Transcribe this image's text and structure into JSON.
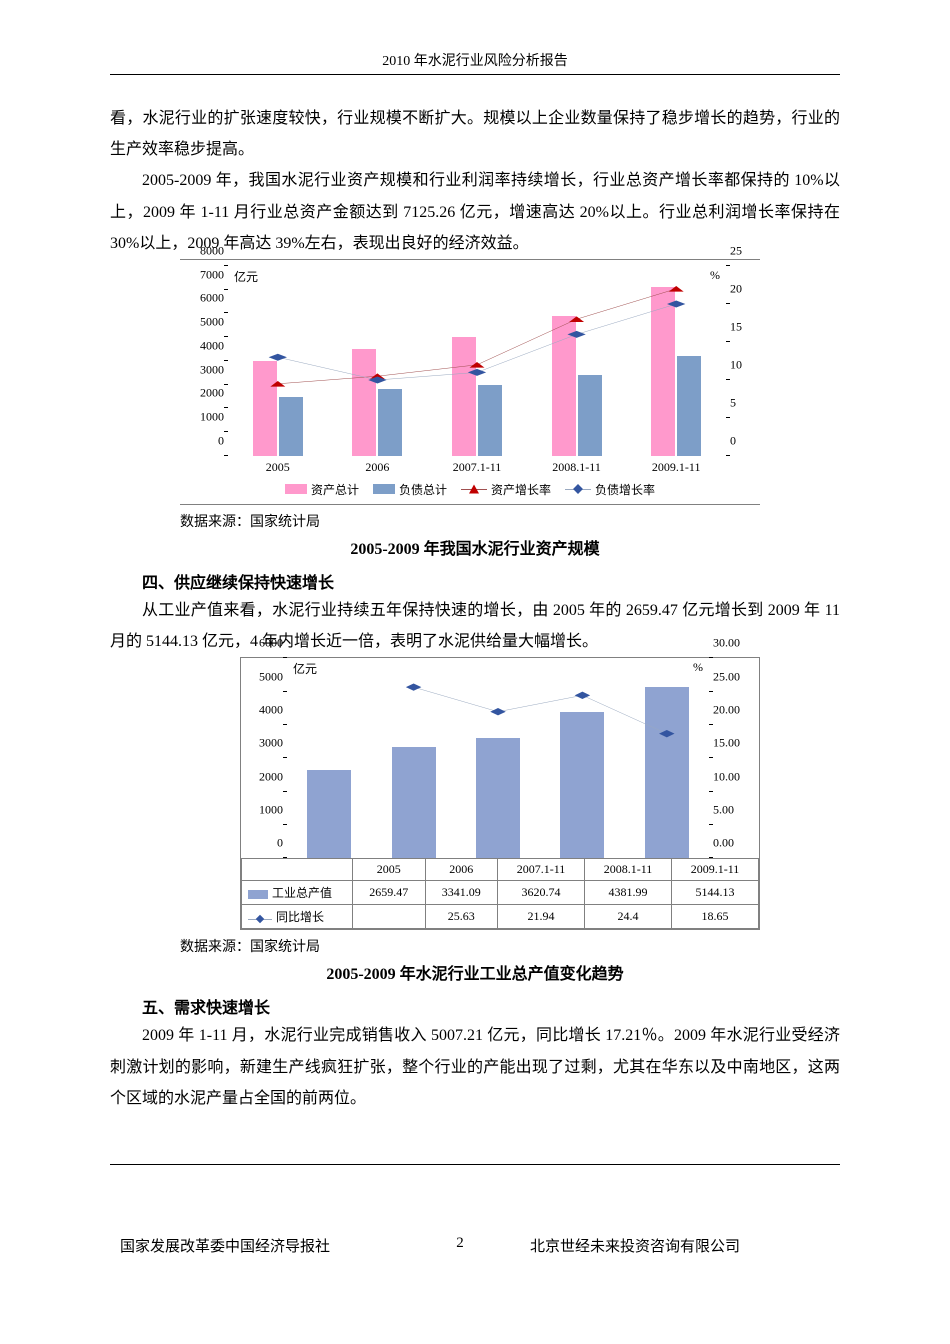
{
  "header": {
    "title": "2010 年水泥行业风险分析报告"
  },
  "paragraphs": {
    "p1": "看，水泥行业的扩张速度较快，行业规模不断扩大。规模以上企业数量保持了稳步增长的趋势，行业的生产效率稳步提高。",
    "p2": "2005-2009 年，我国水泥行业资产规模和行业利润率持续增长，行业总资产增长率都保持的 10%以上，2009 年 1-11 月行业总资产金额达到 7125.26 亿元，增速高达 20%以上。行业总利润增长率保持在 30%以上，2009 年高达 39%左右，表现出良好的经济效益。",
    "p3": "从工业产值来看，水泥行业持续五年保持快速的增长，由 2005 年的 2659.47 亿元增长到 2009 年 11 月的 5144.13 亿元，4 年内增长近一倍，表明了水泥供给量大幅增长。",
    "p4": "2009 年 1-11 月，水泥行业完成销售收入 5007.21 亿元，同比增长 17.21％。2009 年水泥行业受经济刺激计划的影响，新建生产线疯狂扩张，整个行业的产能出现了过剩，尤其在华东以及中南地区，这两个区域的水泥产量占全国的前两位。"
  },
  "sections": {
    "s4": "四、供应继续保持快速增长",
    "s5": "五、需求快速增长"
  },
  "source_label": "数据来源：国家统计局",
  "chart1": {
    "title": "2005-2009 年我国水泥行业资产规模",
    "unit_left": "亿元",
    "unit_right": "%",
    "categories": [
      "2005",
      "2006",
      "2007.1-11",
      "2008.1-11",
      "2009.1-11"
    ],
    "assets": [
      4000,
      4500,
      5000,
      5900,
      7100
    ],
    "liabilities": [
      2500,
      2800,
      3000,
      3400,
      4200
    ],
    "asset_growth": [
      9.5,
      10.5,
      12,
      18,
      22
    ],
    "liab_growth": [
      13,
      10,
      11,
      16,
      20
    ],
    "y_left_max": 8000,
    "y_left_step": 1000,
    "y_right_max": 25,
    "y_right_step": 5,
    "colors": {
      "assets": "#ff99cc",
      "liabilities": "#7d9ec8",
      "asset_growth_line": "#a05050",
      "asset_growth_marker": "#c00000",
      "liab_growth_line": "#9aa9c0",
      "liab_growth_marker": "#3355a0"
    },
    "legend": {
      "assets": "资产总计",
      "liabilities": "负债总计",
      "asset_growth": "资产增长率",
      "liab_growth": "负债增长率"
    }
  },
  "chart2": {
    "title": "2005-2009 年水泥行业工业总产值变化趋势",
    "unit_left": "亿元",
    "unit_right": "%",
    "categories": [
      "2005",
      "2006",
      "2007.1-11",
      "2008.1-11",
      "2009.1-11"
    ],
    "output": [
      2659.47,
      3341.09,
      3620.74,
      4381.99,
      5144.13
    ],
    "growth": [
      null,
      25.63,
      21.94,
      24.4,
      18.65
    ],
    "y_left_max": 6000,
    "y_left_step": 1000,
    "y_right_max": 30.0,
    "y_right_step": 5.0,
    "colors": {
      "output": "#8fa3d1",
      "growth_line": "#9aa9c0",
      "growth_marker": "#3355a0"
    },
    "legend": {
      "output": "工业总产值",
      "growth": "同比增长"
    }
  },
  "footer": {
    "left": "国家发展改革委中国经济导报社",
    "page": "2",
    "right": "北京世经未来投资咨询有限公司"
  }
}
